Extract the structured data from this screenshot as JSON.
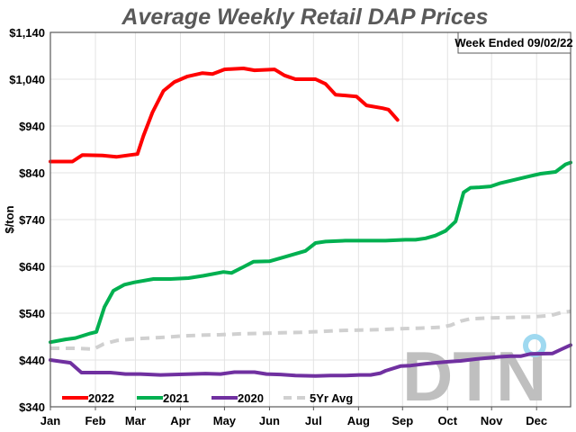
{
  "chart_data": {
    "type": "line",
    "title": "Average Weekly Retail DAP Prices",
    "xlabel": "",
    "ylabel": "$/ton",
    "ylim": [
      340,
      1140
    ],
    "yticks": [
      340,
      440,
      540,
      640,
      740,
      840,
      940,
      1040,
      1140
    ],
    "ytick_labels": [
      "$340",
      "$440",
      "$540",
      "$640",
      "$740",
      "$840",
      "$940",
      "$1,040",
      "$1,140"
    ],
    "x_unit": "week of year (0 = start of Jan, 52 = end of Dec)",
    "xlim": [
      0,
      52
    ],
    "month_ticks": [
      0,
      4.5,
      8.5,
      13,
      17.4,
      21.9,
      26.3,
      30.8,
      35.2,
      39.7,
      44.1,
      48.6
    ],
    "month_labels": [
      "Jan",
      "Feb",
      "Mar",
      "Apr",
      "May",
      "Jun",
      "Jul",
      "Aug",
      "Sep",
      "Oct",
      "Nov",
      "Dec"
    ],
    "grid": true,
    "legend_position": "bottom-left",
    "annotation": "Week Ended 09/02/22",
    "watermark": "DTN",
    "series": [
      {
        "name": "2022",
        "color": "#ff0000",
        "style": "solid",
        "x": [
          0,
          2.2,
          3.2,
          5.2,
          6.6,
          8.0,
          8.7,
          9.3,
          10.2,
          11.3,
          12.4,
          13.7,
          15.2,
          16.2,
          17.4,
          19.3,
          20.4,
          22.4,
          23.4,
          24.5,
          26.5,
          27.5,
          28.5,
          30.6,
          31.6,
          33.2,
          33.8,
          34.7
        ],
        "values": [
          864,
          864,
          878,
          877,
          874,
          878,
          880,
          919,
          969,
          1015,
          1034,
          1046,
          1053,
          1051,
          1061,
          1063,
          1059,
          1061,
          1048,
          1040,
          1040,
          1030,
          1007,
          1003,
          984,
          978,
          975,
          953
        ]
      },
      {
        "name": "2021",
        "color": "#00b050",
        "style": "solid",
        "x": [
          0,
          1.5,
          2.5,
          4.0,
          4.6,
          5.4,
          6.3,
          7.4,
          8.4,
          10.3,
          12.0,
          13.8,
          15.3,
          17.3,
          18.1,
          19.4,
          20.3,
          21.9,
          23.4,
          25.5,
          26.5,
          27.5,
          29.5,
          31.5,
          33.5,
          35.5,
          36.5,
          37.5,
          38.5,
          39.5,
          40.5,
          41.3,
          42.0,
          42.9,
          44.0,
          45.0,
          46.0,
          47.0,
          48.0,
          49.0,
          50.5,
          51.5,
          52.0
        ],
        "values": [
          478,
          484,
          487,
          497,
          500,
          553,
          588,
          601,
          606,
          613,
          613,
          615,
          620,
          628,
          626,
          640,
          650,
          651,
          660,
          673,
          690,
          693,
          695,
          695,
          695,
          697,
          697,
          700,
          706,
          716,
          736,
          798,
          808,
          809,
          811,
          818,
          823,
          828,
          833,
          838,
          842,
          858,
          862
        ]
      },
      {
        "name": "2020",
        "color": "#7030a0",
        "style": "solid",
        "x": [
          0,
          2.0,
          3.1,
          6.0,
          7.5,
          9.0,
          11.0,
          12.5,
          14.0,
          15.5,
          17.0,
          18.4,
          19.4,
          20.4,
          21.6,
          23.0,
          24.5,
          26.5,
          28.0,
          29.5,
          30.9,
          32.0,
          33.0,
          33.5,
          35.0,
          36.0,
          37.5,
          38.5,
          39.5,
          41.0,
          42.5,
          44.0,
          45.0,
          46.0,
          47.0,
          48.0,
          50.2,
          51.1,
          52.0
        ],
        "values": [
          440,
          434,
          413,
          413,
          410,
          410,
          408,
          409,
          410,
          411,
          410,
          414,
          414,
          414,
          410,
          409,
          407,
          406,
          407,
          407,
          408,
          408,
          412,
          417,
          427,
          428,
          432,
          434,
          436,
          438,
          442,
          445,
          447,
          448,
          448,
          453,
          454,
          463,
          472
        ]
      },
      {
        "name": "5Yr Avg",
        "color": "#d0d0d0",
        "style": "dashed",
        "x": [
          0,
          2.5,
          4.3,
          5.3,
          6.7,
          9.0,
          11.0,
          13.0,
          15.0,
          17.0,
          19.0,
          21.0,
          23.0,
          25.0,
          27.0,
          29.0,
          31.0,
          33.0,
          35.0,
          37.0,
          38.0,
          39.0,
          40.0,
          41.0,
          42.0,
          44.0,
          46.0,
          48.0,
          50.0,
          51.0,
          52.0
        ],
        "values": [
          465,
          465,
          463,
          474,
          482,
          486,
          488,
          491,
          493,
          494,
          496,
          497,
          498,
          499,
          501,
          503,
          504,
          505,
          507,
          508,
          509,
          510,
          514,
          523,
          528,
          530,
          531,
          532,
          535,
          541,
          544
        ]
      }
    ]
  }
}
